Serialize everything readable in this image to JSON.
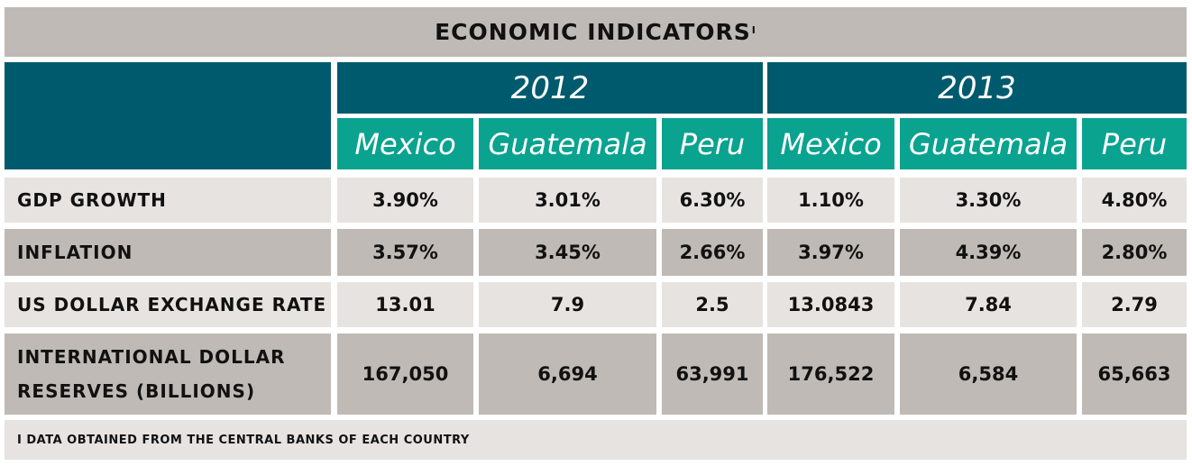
{
  "title": "ECONOMIC INDICATORS",
  "title_footnote_mark": "I",
  "years": [
    "2012",
    "2013"
  ],
  "countries": [
    "Mexico",
    "Guatemala",
    "Peru",
    "Mexico",
    "Guatemala",
    "Peru"
  ],
  "rows": [
    {
      "label": "GDP GROWTH",
      "values": [
        "3.90%",
        "3.01%",
        "6.30%",
        "1.10%",
        "3.30%",
        "4.80%"
      ]
    },
    {
      "label": "INFLATION",
      "values": [
        "3.57%",
        "3.45%",
        "2.66%",
        "3.97%",
        "4.39%",
        "2.80%"
      ]
    },
    {
      "label": "US DOLLAR EXCHANGE RATE",
      "values": [
        "13.01",
        "7.9",
        "2.5",
        "13.0843",
        "7.84",
        "2.79"
      ]
    },
    {
      "label": "INTERNATIONAL DOLLAR RESERVES (BILLIONS)",
      "values": [
        "167,050",
        "6,694",
        "63,991",
        "176,522",
        "6,584",
        "65,663"
      ]
    }
  ],
  "footnote": "I DATA OBTAINED FROM THE CENTRAL BANKS OF EACH COUNTRY",
  "colors": {
    "header_teal": "#005a6e",
    "country_teal": "#0aa38f",
    "gray": "#bfbab5",
    "light": "#e6e3e1"
  }
}
